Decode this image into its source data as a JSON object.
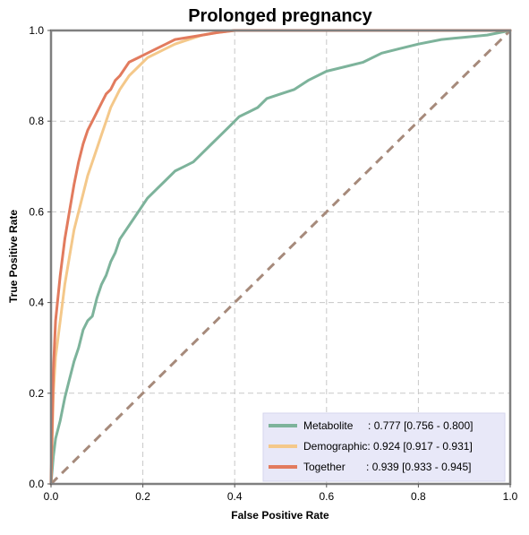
{
  "chart_data": {
    "type": "line",
    "title": "Prolonged pregnancy",
    "xlabel": "False Positive Rate",
    "ylabel": "True Positive Rate",
    "xlim": [
      0,
      1
    ],
    "ylim": [
      0,
      1
    ],
    "xticks": [
      "0.0",
      "0.2",
      "0.4",
      "0.6",
      "0.8",
      "1.0"
    ],
    "yticks": [
      "0.0",
      "0.2",
      "0.4",
      "0.6",
      "0.8",
      "1.0"
    ],
    "grid": true,
    "legend_position": "lower-right",
    "diagonal": {
      "x": [
        0,
        1
      ],
      "y": [
        0,
        1
      ],
      "color": "#a68a7b",
      "style": "dashed"
    },
    "series": [
      {
        "name": "Metabolite",
        "legend_label": "Metabolite     : 0.777 [0.756 - 0.800]",
        "color": "#7db39b",
        "x": [
          0,
          0.005,
          0.01,
          0.02,
          0.03,
          0.04,
          0.05,
          0.06,
          0.07,
          0.08,
          0.09,
          0.1,
          0.11,
          0.12,
          0.13,
          0.14,
          0.15,
          0.17,
          0.19,
          0.21,
          0.23,
          0.25,
          0.27,
          0.29,
          0.31,
          0.33,
          0.35,
          0.37,
          0.39,
          0.41,
          0.43,
          0.45,
          0.47,
          0.5,
          0.53,
          0.56,
          0.6,
          0.64,
          0.68,
          0.72,
          0.76,
          0.8,
          0.85,
          0.9,
          0.95,
          1.0
        ],
        "y": [
          0,
          0.06,
          0.1,
          0.14,
          0.19,
          0.23,
          0.27,
          0.3,
          0.34,
          0.36,
          0.37,
          0.41,
          0.44,
          0.46,
          0.49,
          0.51,
          0.54,
          0.57,
          0.6,
          0.63,
          0.65,
          0.67,
          0.69,
          0.7,
          0.71,
          0.73,
          0.75,
          0.77,
          0.79,
          0.81,
          0.82,
          0.83,
          0.85,
          0.86,
          0.87,
          0.89,
          0.91,
          0.92,
          0.93,
          0.95,
          0.96,
          0.97,
          0.98,
          0.985,
          0.99,
          1.0
        ]
      },
      {
        "name": "Demographic",
        "legend_label": "Demographic: 0.924 [0.917 - 0.931]",
        "color": "#f4c88a",
        "x": [
          0,
          0.005,
          0.01,
          0.02,
          0.03,
          0.04,
          0.05,
          0.06,
          0.07,
          0.08,
          0.09,
          0.1,
          0.11,
          0.12,
          0.13,
          0.14,
          0.15,
          0.17,
          0.19,
          0.21,
          0.23,
          0.25,
          0.27,
          0.3,
          0.33,
          0.36,
          0.4,
          0.5,
          0.6,
          0.7,
          0.8,
          0.9,
          1.0
        ],
        "y": [
          0,
          0.2,
          0.28,
          0.36,
          0.44,
          0.5,
          0.56,
          0.6,
          0.64,
          0.68,
          0.71,
          0.74,
          0.77,
          0.8,
          0.83,
          0.85,
          0.87,
          0.9,
          0.92,
          0.94,
          0.95,
          0.96,
          0.97,
          0.98,
          0.99,
          0.995,
          1.0,
          1.0,
          1.0,
          1.0,
          1.0,
          1.0,
          1.0
        ]
      },
      {
        "name": "Together",
        "legend_label": "Together       : 0.939 [0.933 - 0.945]",
        "color": "#e27b5e",
        "x": [
          0,
          0.005,
          0.01,
          0.02,
          0.03,
          0.04,
          0.05,
          0.06,
          0.07,
          0.08,
          0.09,
          0.1,
          0.11,
          0.12,
          0.13,
          0.14,
          0.15,
          0.17,
          0.19,
          0.21,
          0.23,
          0.25,
          0.27,
          0.3,
          0.33,
          0.36,
          0.4,
          0.5,
          0.6,
          0.7,
          0.8,
          0.9,
          1.0
        ],
        "y": [
          0,
          0.25,
          0.36,
          0.46,
          0.54,
          0.6,
          0.66,
          0.71,
          0.75,
          0.78,
          0.8,
          0.82,
          0.84,
          0.86,
          0.87,
          0.89,
          0.9,
          0.93,
          0.94,
          0.95,
          0.96,
          0.97,
          0.98,
          0.985,
          0.99,
          0.995,
          1.0,
          1.0,
          1.0,
          1.0,
          1.0,
          1.0,
          1.0
        ]
      }
    ]
  }
}
